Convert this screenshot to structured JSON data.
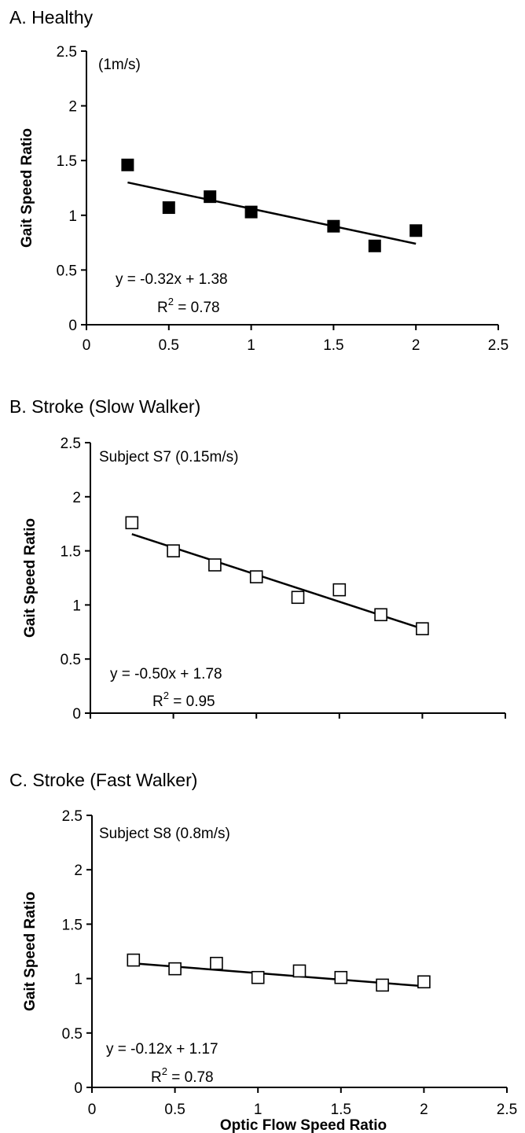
{
  "figure": {
    "xlabel": "Optic Flow Speed Ratio"
  },
  "chart_data": [
    {
      "type": "scatter",
      "panel_title": "A. Healthy",
      "annotation": "(1m/s)",
      "ylabel": "Gait Speed Ratio",
      "xlim": [
        0,
        2.5
      ],
      "ylim": [
        0,
        2.5
      ],
      "x_ticks": [
        "0",
        "0.5",
        "1",
        "1.5",
        "2",
        "2.5"
      ],
      "y_ticks": [
        "0",
        "0.5",
        "1",
        "1.5",
        "2",
        "2.5"
      ],
      "marker": "filled-square",
      "points": [
        {
          "x": 0.25,
          "y": 1.46
        },
        {
          "x": 0.5,
          "y": 1.07
        },
        {
          "x": 0.75,
          "y": 1.17
        },
        {
          "x": 1.0,
          "y": 1.03
        },
        {
          "x": 1.5,
          "y": 0.9
        },
        {
          "x": 1.75,
          "y": 0.72
        },
        {
          "x": 2.0,
          "y": 0.86
        }
      ],
      "trendline": {
        "slope": -0.32,
        "intercept": 1.38,
        "x_from": 0.25,
        "x_to": 2.0
      },
      "equation": "y = -0.32x + 1.38",
      "r2_prefix": "R",
      "r2_exp": "2",
      "r2_suffix": " = 0.78"
    },
    {
      "type": "scatter",
      "panel_title": "B. Stroke (Slow Walker)",
      "annotation": "Subject S7  (0.15m/s)",
      "ylabel": "Gait Speed Ratio",
      "xlim": [
        0,
        2.5
      ],
      "ylim": [
        0,
        2.5
      ],
      "x_ticks": [],
      "y_ticks": [
        "0",
        "0.5",
        "1",
        "1.5",
        "2",
        "2.5"
      ],
      "marker": "open-square",
      "points": [
        {
          "x": 0.25,
          "y": 1.76
        },
        {
          "x": 0.5,
          "y": 1.5
        },
        {
          "x": 0.75,
          "y": 1.37
        },
        {
          "x": 1.0,
          "y": 1.26
        },
        {
          "x": 1.25,
          "y": 1.07
        },
        {
          "x": 1.5,
          "y": 1.14
        },
        {
          "x": 1.75,
          "y": 0.91
        },
        {
          "x": 2.0,
          "y": 0.78
        }
      ],
      "trendline": {
        "slope": -0.5,
        "intercept": 1.78,
        "x_from": 0.25,
        "x_to": 2.0
      },
      "equation": "y = -0.50x + 1.78",
      "r2_prefix": "R",
      "r2_exp": "2",
      "r2_suffix": " = 0.95"
    },
    {
      "type": "scatter",
      "panel_title": "C. Stroke (Fast Walker)",
      "annotation": "Subject S8  (0.8m/s)",
      "ylabel": "Gait Speed Ratio",
      "xlim": [
        0,
        2.5
      ],
      "ylim": [
        0,
        2.5
      ],
      "x_ticks": [
        "0",
        "0.5",
        "1",
        "1.5",
        "2",
        "2.5"
      ],
      "y_ticks": [
        "0",
        "0.5",
        "1",
        "1.5",
        "2",
        "2.5"
      ],
      "marker": "open-square",
      "points": [
        {
          "x": 0.25,
          "y": 1.17
        },
        {
          "x": 0.5,
          "y": 1.09
        },
        {
          "x": 0.75,
          "y": 1.14
        },
        {
          "x": 1.0,
          "y": 1.01
        },
        {
          "x": 1.25,
          "y": 1.07
        },
        {
          "x": 1.5,
          "y": 1.01
        },
        {
          "x": 1.75,
          "y": 0.94
        },
        {
          "x": 2.0,
          "y": 0.97
        }
      ],
      "trendline": {
        "slope": -0.12,
        "intercept": 1.17,
        "x_from": 0.25,
        "x_to": 2.0
      },
      "equation": "y = -0.12x + 1.17",
      "r2_prefix": "R",
      "r2_exp": "2",
      "r2_suffix": " = 0.78"
    }
  ]
}
